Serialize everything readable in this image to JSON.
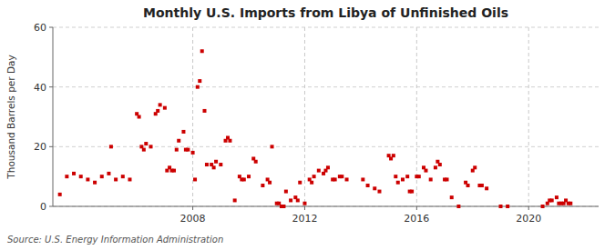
{
  "chart_data": {
    "type": "scatter",
    "title": "Monthly U.S. Imports from Libya of Unfinished Oils",
    "ylabel": "Thousand Barrels per Day",
    "source": "Source: U.S. Energy Information Administration",
    "color": "#cc0000",
    "marker": "square",
    "grid": true,
    "xlim": [
      2003.0,
      2022.5
    ],
    "xticks": [
      2008,
      2012,
      2016,
      2020
    ],
    "ylim": [
      0,
      60
    ],
    "yticks": [
      0,
      20,
      40,
      60
    ],
    "x": [
      2003.25,
      2003.5,
      2003.75,
      2004.0,
      2004.25,
      2004.5,
      2004.75,
      2005.0,
      2005.08,
      2005.25,
      2005.5,
      2005.75,
      2006.0,
      2006.08,
      2006.17,
      2006.25,
      2006.33,
      2006.5,
      2006.67,
      2006.75,
      2006.83,
      2007.0,
      2007.08,
      2007.17,
      2007.25,
      2007.33,
      2007.42,
      2007.5,
      2007.67,
      2007.75,
      2007.83,
      2008.0,
      2008.08,
      2008.17,
      2008.25,
      2008.33,
      2008.42,
      2008.5,
      2008.67,
      2008.75,
      2008.83,
      2009.0,
      2009.17,
      2009.25,
      2009.33,
      2009.5,
      2009.67,
      2009.75,
      2009.83,
      2010.0,
      2010.17,
      2010.25,
      2010.5,
      2010.67,
      2010.75,
      2010.83,
      2011.0,
      2011.08,
      2011.17,
      2011.25,
      2011.33,
      2011.5,
      2011.67,
      2011.75,
      2011.83,
      2012.0,
      2012.17,
      2012.25,
      2012.33,
      2012.5,
      2012.67,
      2012.75,
      2012.83,
      2013.0,
      2013.08,
      2013.25,
      2013.33,
      2013.5,
      2014.08,
      2014.25,
      2014.5,
      2014.67,
      2015.0,
      2015.08,
      2015.17,
      2015.25,
      2015.33,
      2015.5,
      2015.67,
      2015.75,
      2015.83,
      2016.0,
      2016.08,
      2016.25,
      2016.33,
      2016.5,
      2016.67,
      2016.75,
      2016.83,
      2017.0,
      2017.08,
      2017.25,
      2017.5,
      2017.75,
      2017.83,
      2018.0,
      2018.08,
      2018.25,
      2018.33,
      2018.5,
      2019.0,
      2019.25,
      2020.5,
      2020.67,
      2020.75,
      2020.83,
      2021.0,
      2021.08,
      2021.17,
      2021.25,
      2021.33,
      2021.42,
      2021.5
    ],
    "values": [
      4,
      10,
      11,
      10,
      9,
      8,
      10,
      11,
      20,
      9,
      10,
      9,
      31,
      30,
      20,
      19,
      21,
      20,
      31,
      32,
      34,
      33,
      12,
      13,
      12,
      12,
      19,
      22,
      25,
      19,
      19,
      18,
      9,
      40,
      42,
      52,
      32,
      14,
      14,
      13,
      15,
      14,
      22,
      23,
      22,
      2,
      10,
      9,
      9,
      10,
      16,
      15,
      7,
      9,
      8,
      20,
      1,
      1,
      0,
      0,
      5,
      2,
      3,
      2,
      8,
      1,
      9,
      8,
      10,
      12,
      11,
      12,
      13,
      9,
      9,
      10,
      10,
      9,
      9,
      7,
      6,
      5,
      17,
      16,
      17,
      10,
      8,
      9,
      10,
      5,
      5,
      10,
      10,
      13,
      12,
      9,
      13,
      15,
      14,
      9,
      9,
      3,
      0,
      8,
      7,
      12,
      13,
      7,
      7,
      6,
      0,
      0,
      0,
      1,
      2,
      2,
      3,
      1,
      1,
      1,
      2,
      1,
      1
    ]
  }
}
